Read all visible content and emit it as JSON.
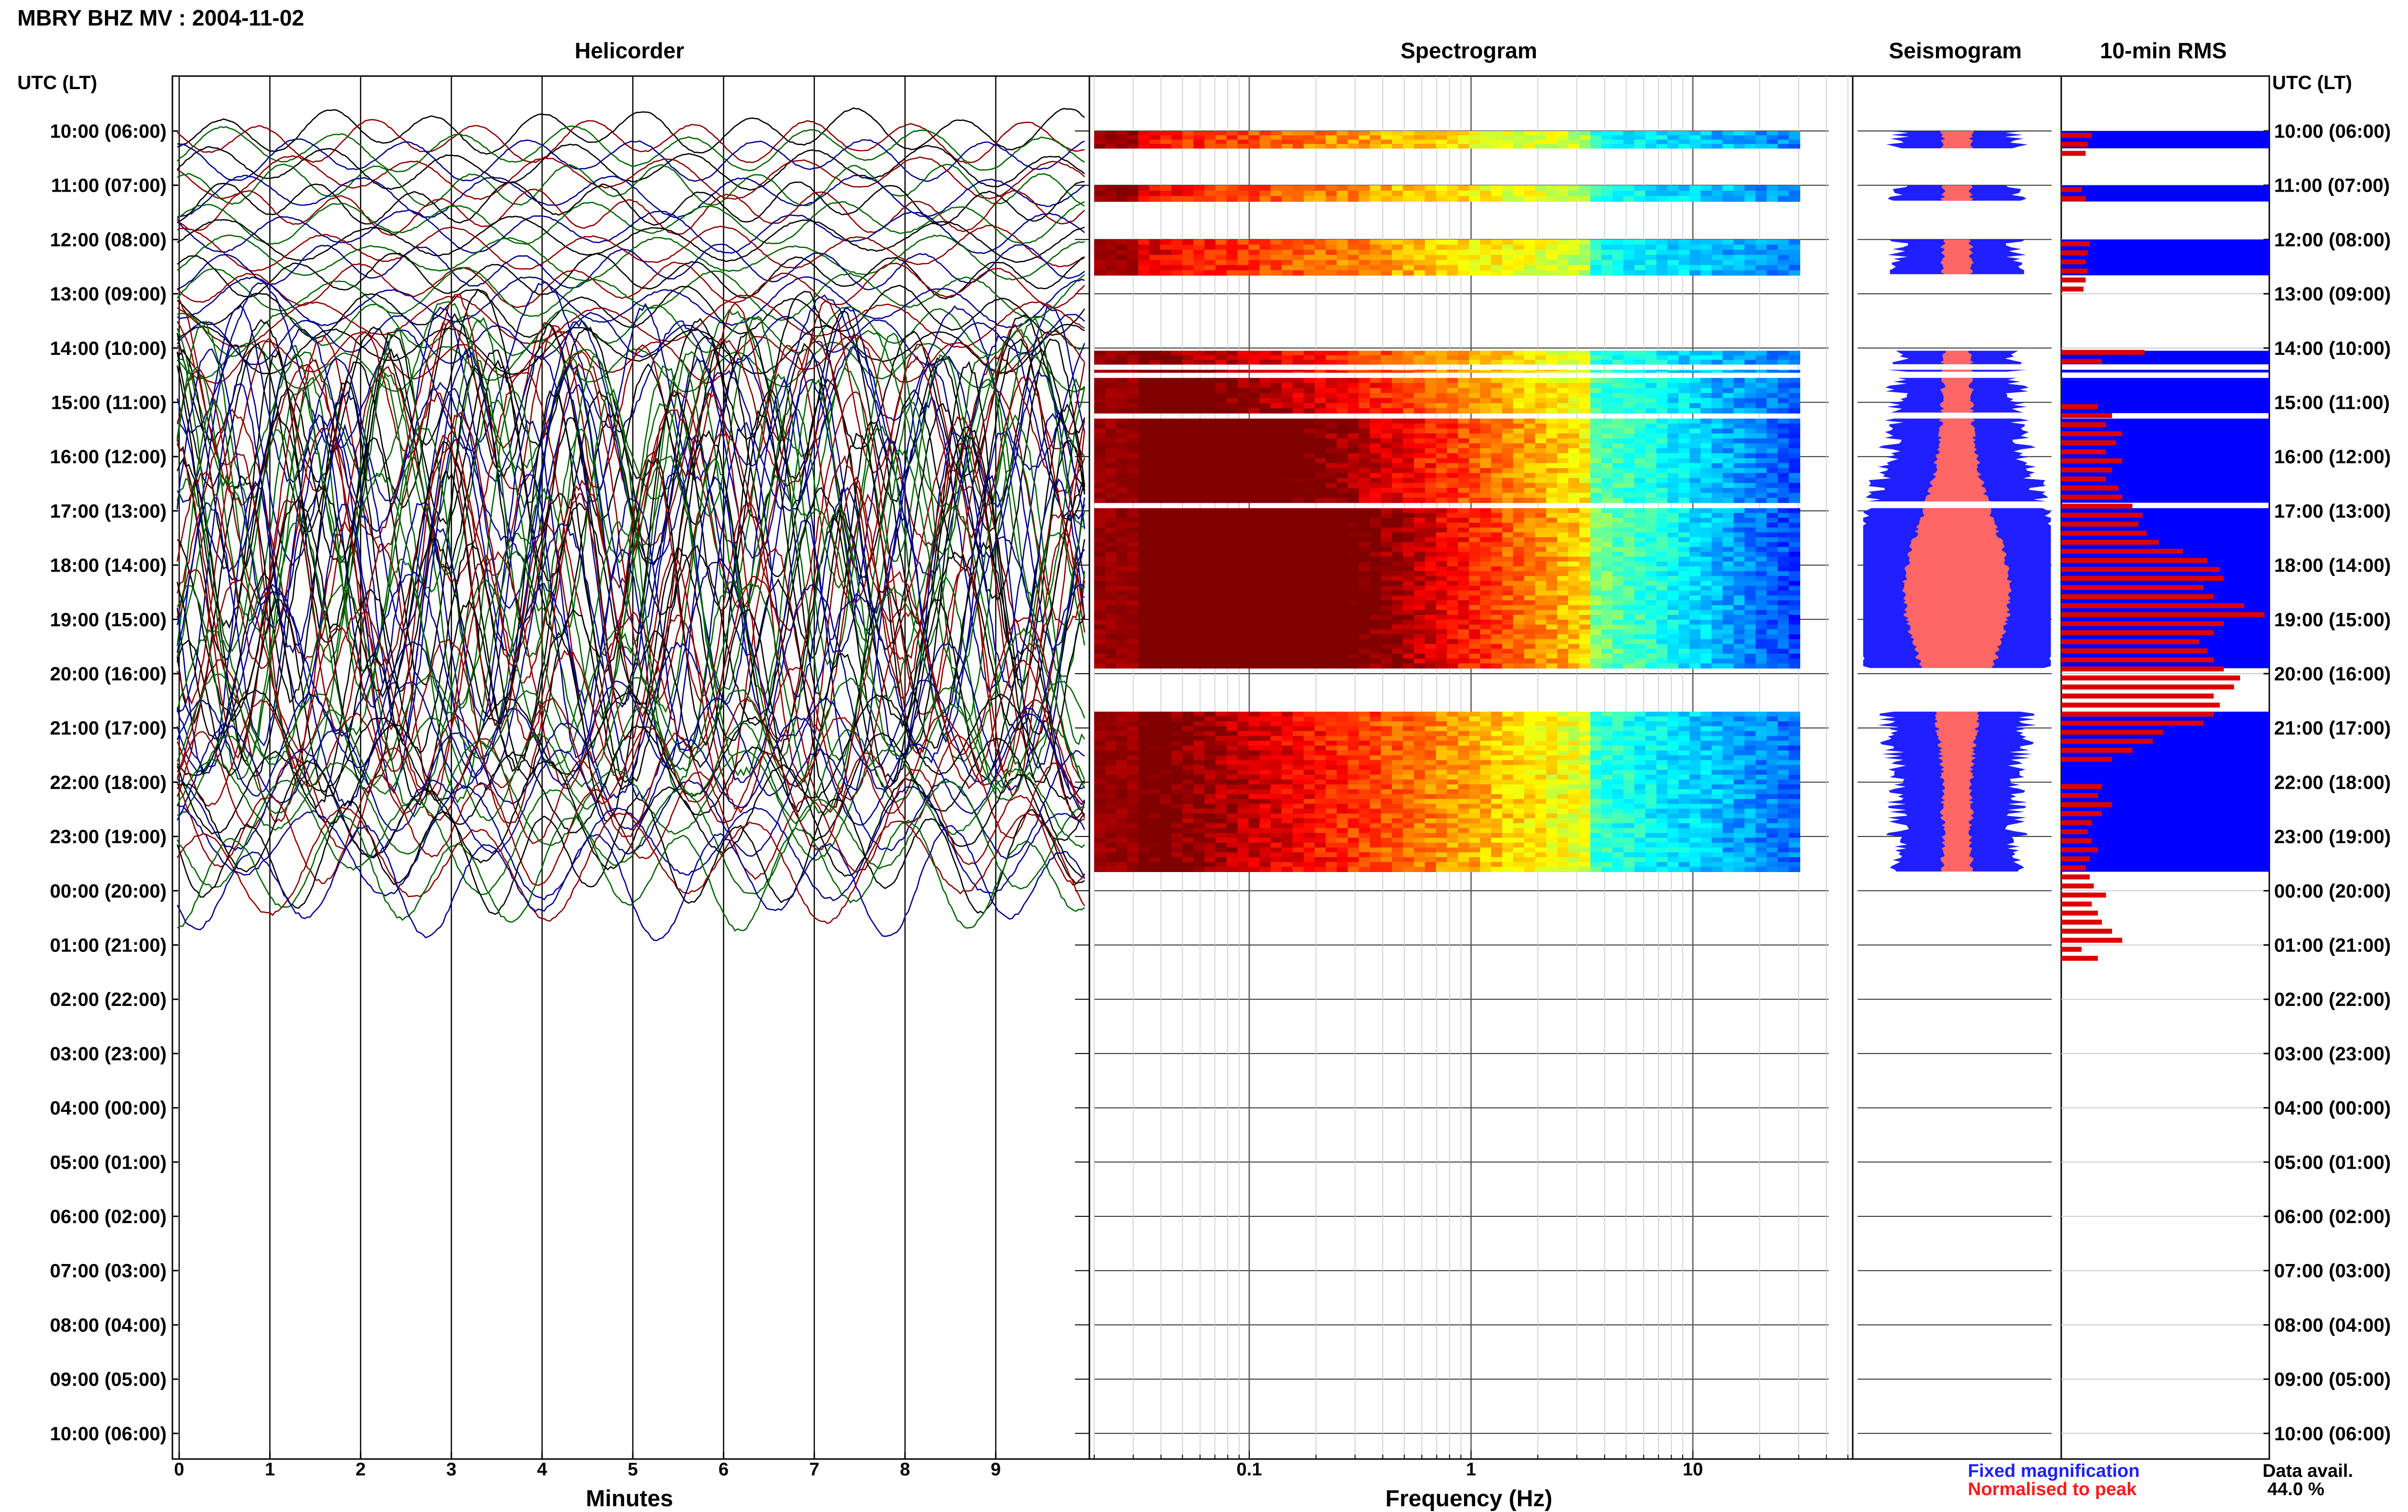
{
  "header": {
    "title": "MBRY BHZ MV : 2004-11-02"
  },
  "panels": {
    "helicorder": "Helicorder",
    "spectrogram": "Spectrogram",
    "seismogram": "Seismogram",
    "rms": "10-min RMS"
  },
  "time_axis_label": "UTC (LT)",
  "legend": {
    "fixed": "Fixed magnification",
    "normalised": "Normalised to peak",
    "fixed_color": "#1f1fff",
    "normalised_color": "#ff1a1a"
  },
  "data_avail": {
    "label": "Data avail.",
    "value": "44.0 %"
  },
  "chart_data": [
    {
      "type": "line",
      "title": "Helicorder",
      "xlabel": "Minutes",
      "ylabel": "UTC (LT)",
      "x_ticks": [
        "0",
        "1",
        "2",
        "3",
        "4",
        "5",
        "6",
        "7",
        "8",
        "9"
      ],
      "xlim": [
        0,
        10
      ],
      "time_ticks": [
        "10:00 (06:00)",
        "11:00 (07:00)",
        "12:00 (08:00)",
        "13:00 (09:00)",
        "14:00 (10:00)",
        "15:00 (11:00)",
        "16:00 (12:00)",
        "17:00 (13:00)",
        "18:00 (14:00)",
        "19:00 (15:00)",
        "20:00 (16:00)",
        "21:00 (17:00)",
        "22:00 (18:00)",
        "23:00 (19:00)",
        "00:00 (20:00)",
        "01:00 (21:00)",
        "02:00 (22:00)",
        "03:00 (23:00)",
        "04:00 (00:00)",
        "05:00 (01:00)",
        "06:00 (02:00)",
        "07:00 (03:00)",
        "08:00 (04:00)",
        "09:00 (05:00)",
        "10:00 (06:00)"
      ],
      "trace_colors": [
        "#000000",
        "#8b0000",
        "#006400",
        "#00008b"
      ],
      "data_rows_hours": 14,
      "grid": true
    },
    {
      "type": "heatmap",
      "title": "Spectrogram",
      "xlabel": "Frequency (Hz)",
      "x_scale": "log",
      "x_ticks": [
        "0.1",
        "1",
        "10"
      ],
      "xlim": [
        0.02,
        50
      ],
      "colormap": "jet",
      "data_hours": [
        "10:00",
        "11:00",
        "12:00",
        "14:00",
        "15:00",
        "16:00",
        "17:00",
        "18:00",
        "19:00",
        "20:00",
        "21:00",
        "22:00",
        "23:00"
      ]
    },
    {
      "type": "area",
      "title": "Seismogram",
      "series": [
        {
          "name": "Fixed magnification",
          "color": "#1f1fff"
        },
        {
          "name": "Normalised to peak",
          "color": "#ff1a1a"
        }
      ]
    },
    {
      "type": "bar",
      "title": "10-min RMS",
      "orientation": "horizontal",
      "values": [
        0.15,
        0.13,
        0.12,
        null,
        null,
        null,
        0.1,
        0.12,
        null,
        null,
        null,
        null,
        0.14,
        0.13,
        0.12,
        0.13,
        0.12,
        0.11,
        null,
        null,
        null,
        null,
        null,
        null,
        0.41,
        0.2,
        null,
        null,
        null,
        null,
        0.18,
        0.25,
        0.22,
        0.3,
        0.27,
        0.22,
        0.3,
        0.25,
        0.22,
        0.28,
        0.3,
        0.35,
        0.4,
        0.38,
        0.42,
        0.48,
        0.6,
        0.72,
        0.78,
        0.8,
        0.7,
        0.75,
        0.9,
        1.0,
        0.8,
        0.75,
        0.68,
        0.72,
        0.75,
        0.8,
        0.88,
        0.85,
        0.75,
        0.78,
        0.75,
        0.7,
        0.5,
        0.45,
        0.35,
        0.25,
        null,
        null,
        0.2,
        0.18,
        0.25,
        0.2,
        0.15,
        0.13,
        0.15,
        0.18,
        0.14,
        0.12,
        0.14,
        0.16,
        0.22,
        0.15,
        0.18,
        0.2,
        0.25,
        0.3,
        0.1,
        0.18
      ],
      "bar_color": "#dd0000",
      "background_color": "#0000ff",
      "xlim": [
        0,
        1
      ]
    }
  ]
}
